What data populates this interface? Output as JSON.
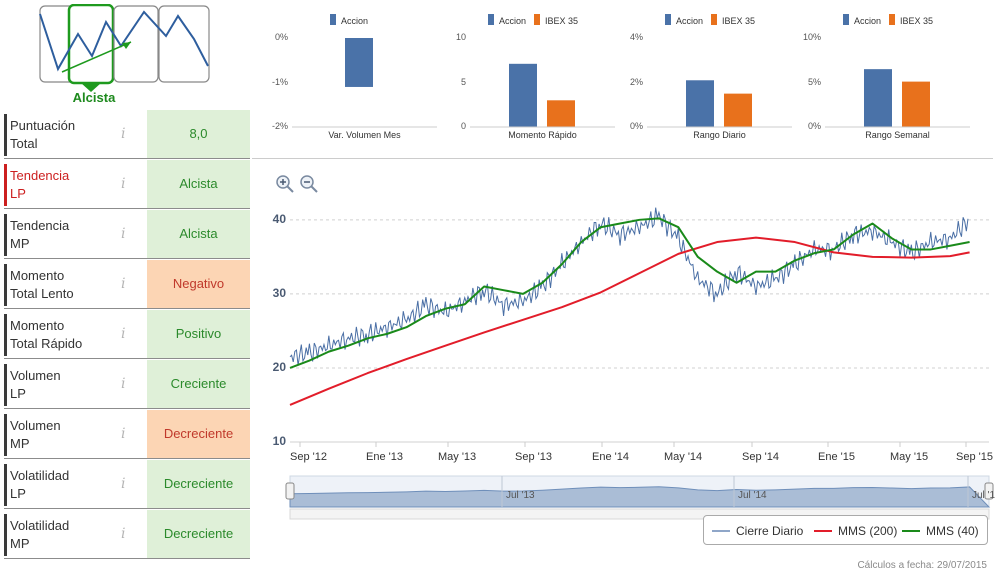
{
  "trend": {
    "label": "Alcista"
  },
  "metrics": [
    {
      "name_line1": "Puntuación",
      "name_line2": "Total",
      "value": "8,0",
      "info": "i",
      "tone": "green",
      "highlight": false
    },
    {
      "name_line1": "Tendencia",
      "name_line2": "LP",
      "value": "Alcista",
      "info": "i",
      "tone": "green",
      "highlight": true
    },
    {
      "name_line1": "Tendencia",
      "name_line2": "MP",
      "value": "Alcista",
      "info": "i",
      "tone": "green",
      "highlight": false
    },
    {
      "name_line1": "Momento",
      "name_line2": "Total Lento",
      "value": "Negativo",
      "info": "i",
      "tone": "orange",
      "highlight": false
    },
    {
      "name_line1": "Momento",
      "name_line2": "Total Rápido",
      "value": "Positivo",
      "info": "i",
      "tone": "green",
      "highlight": false
    },
    {
      "name_line1": "Volumen",
      "name_line2": "LP",
      "value": "Creciente",
      "info": "i",
      "tone": "green",
      "highlight": false
    },
    {
      "name_line1": "Volumen",
      "name_line2": "MP",
      "value": "Decreciente",
      "info": "i",
      "tone": "orange",
      "highlight": false
    },
    {
      "name_line1": "Volatilidad",
      "name_line2": "LP",
      "value": "Decreciente",
      "info": "i",
      "tone": "green",
      "highlight": false
    },
    {
      "name_line1": "Volatilidad",
      "name_line2": "MP",
      "value": "Decreciente",
      "info": "i",
      "tone": "green",
      "highlight": false
    }
  ],
  "colors": {
    "accion": "#4a72a8",
    "ibex": "#e8711c",
    "green_text": "#2b8a2b",
    "ma200": "#e21d2a",
    "ma40": "#1a8a1a",
    "price": "#4a6fa5"
  },
  "chart_data": [
    {
      "type": "bar",
      "title": "Var. Volumen Mes",
      "legend": [
        "Accion"
      ],
      "categories": [
        "Var. Volumen Mes"
      ],
      "series": [
        {
          "name": "Accion",
          "values": [
            -1.1
          ]
        }
      ],
      "yticks": [
        "0%",
        "-1%",
        "-2%"
      ],
      "ylim": [
        -2,
        0
      ]
    },
    {
      "type": "bar",
      "title": "Momento Rápido",
      "legend": [
        "Accion",
        "IBEX 35"
      ],
      "categories": [
        "Momento Rápido"
      ],
      "series": [
        {
          "name": "Accion",
          "values": [
            7.1
          ]
        },
        {
          "name": "IBEX 35",
          "values": [
            3.0
          ]
        }
      ],
      "yticks": [
        "10",
        "5",
        "0"
      ],
      "ylim": [
        0,
        10
      ]
    },
    {
      "type": "bar",
      "title": "Rango Diario",
      "legend": [
        "Accion",
        "IBEX 35"
      ],
      "categories": [
        "Rango Diario"
      ],
      "series": [
        {
          "name": "Accion",
          "values": [
            2.1
          ]
        },
        {
          "name": "IBEX 35",
          "values": [
            1.5
          ]
        }
      ],
      "yticks": [
        "4%",
        "2%",
        "0%"
      ],
      "ylim": [
        0,
        4
      ]
    },
    {
      "type": "bar",
      "title": "Rango Semanal",
      "legend": [
        "Accion",
        "IBEX 35"
      ],
      "categories": [
        "Rango Semanal"
      ],
      "series": [
        {
          "name": "Accion",
          "values": [
            6.5
          ]
        },
        {
          "name": "IBEX 35",
          "values": [
            5.1
          ]
        }
      ],
      "yticks": [
        "10%",
        "5%",
        "0%"
      ],
      "ylim": [
        0,
        10
      ]
    },
    {
      "type": "line",
      "title": "",
      "yticks": [
        40,
        30,
        20,
        10
      ],
      "ylim": [
        10,
        42
      ],
      "xticks": [
        "Sep '12",
        "Ene '13",
        "May '13",
        "Sep '13",
        "Ene '14",
        "May '14",
        "Sep '14",
        "Ene '15",
        "May '15",
        "Sep '15"
      ],
      "xlim": [
        0,
        36
      ],
      "navigator_labels": [
        "Jul '13",
        "Jul '14",
        "Jul '1"
      ],
      "series": [
        {
          "name": "Cierre Diario",
          "x": [
            0,
            1,
            2,
            3,
            4,
            5,
            6,
            7,
            8,
            9,
            10,
            11,
            12,
            13,
            14,
            15,
            16,
            17,
            18,
            19,
            20,
            21,
            22,
            23,
            24,
            25,
            26,
            27,
            28,
            29,
            30,
            31,
            32,
            33,
            34,
            35
          ],
          "values": [
            21.5,
            22,
            23,
            24,
            24.5,
            25.5,
            26.5,
            28.5,
            27.5,
            29,
            30.5,
            28.5,
            29,
            31,
            34,
            37,
            39.5,
            38,
            39,
            40.5,
            37.5,
            32,
            30,
            33,
            31,
            32,
            34,
            36,
            36,
            38,
            38.5,
            37,
            35.5,
            37,
            37.5,
            40
          ]
        },
        {
          "name": "MMS (200)",
          "x": [
            0,
            2,
            4,
            6,
            8,
            10,
            12,
            14,
            16,
            18,
            20,
            22,
            24,
            26,
            28,
            30,
            32,
            34,
            35
          ],
          "values": [
            15,
            17.2,
            19.3,
            21.2,
            23,
            24.8,
            26.5,
            28.2,
            30.2,
            32.8,
            35.4,
            37,
            37.6,
            37,
            35.6,
            35,
            34.9,
            35.1,
            35.6
          ]
        },
        {
          "name": "MMS (40)",
          "x": [
            0,
            1,
            2,
            3,
            4,
            5,
            6,
            7,
            8,
            9,
            10,
            11,
            12,
            13,
            14,
            15,
            16,
            17,
            18,
            19,
            20,
            21,
            22,
            23,
            24,
            25,
            26,
            27,
            28,
            29,
            30,
            31,
            32,
            33,
            34,
            35
          ],
          "values": [
            20,
            21,
            22.2,
            23,
            24,
            24.6,
            25.5,
            27,
            28,
            28.6,
            31,
            30.5,
            30,
            31.5,
            34,
            37,
            39,
            39.5,
            40,
            40.2,
            39,
            35,
            33,
            31.5,
            33,
            33,
            34.5,
            35.5,
            36,
            38,
            39.5,
            37.5,
            36,
            36,
            36.5,
            37
          ]
        }
      ],
      "legend": [
        "Cierre Diario",
        "MMS (200)",
        "MMS (40)"
      ]
    }
  ],
  "footer": {
    "date_text": "Cálculos a fecha: 29/07/2015"
  }
}
